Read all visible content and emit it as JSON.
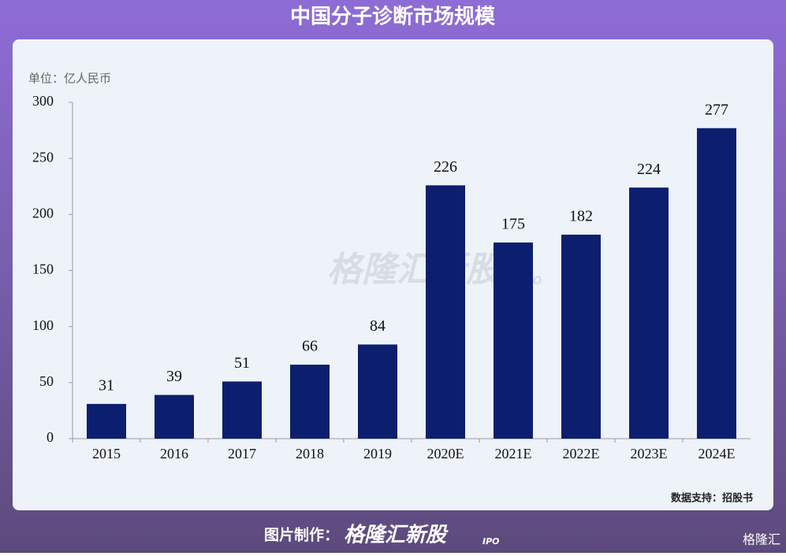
{
  "header": {
    "title": "中国分子诊断市场规模"
  },
  "chart_data": {
    "type": "bar",
    "unit": "单位：亿人民币",
    "source": "数据支持：招股书",
    "categories": [
      "2015",
      "2016",
      "2017",
      "2018",
      "2019",
      "2020E",
      "2021E",
      "2022E",
      "2023E",
      "2024E"
    ],
    "values": [
      31,
      39,
      51,
      66,
      84,
      226,
      175,
      182,
      224,
      277
    ],
    "color": "#0c1f6f",
    "ylim": [
      0,
      300
    ],
    "yticks": [
      0,
      50,
      100,
      150,
      200,
      250,
      300
    ],
    "grid": false
  },
  "footer": {
    "credit": "图片制作：",
    "brand": "格隆汇新股",
    "brand_sub": "IPO",
    "corner_logo": "格隆汇"
  }
}
